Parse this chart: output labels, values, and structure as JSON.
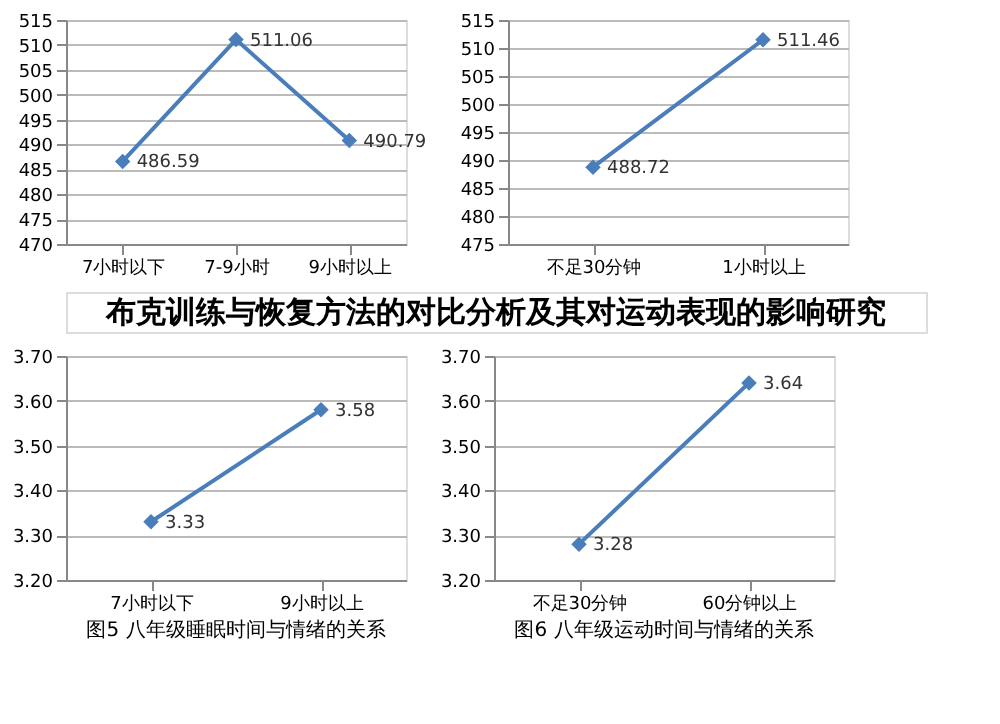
{
  "chart_data": [
    {
      "type": "line",
      "categories": [
        "7小时以下",
        "7-9小时",
        "9小时以上"
      ],
      "values": [
        486.59,
        511.06,
        490.79
      ],
      "color": "#4a7ebb",
      "ylim": [
        470,
        515
      ],
      "yticks": [
        470,
        475,
        480,
        485,
        490,
        495,
        500,
        505,
        510,
        515
      ],
      "grid": "y",
      "marker": "diamond",
      "data_labels": true
    },
    {
      "type": "line",
      "categories": [
        "不足30分钟",
        "1小时以上"
      ],
      "values": [
        488.72,
        511.46
      ],
      "color": "#4a7ebb",
      "ylim": [
        475,
        515
      ],
      "yticks": [
        475,
        480,
        485,
        490,
        495,
        500,
        505,
        510,
        515
      ],
      "grid": "y",
      "marker": "diamond",
      "data_labels": true
    },
    {
      "type": "other",
      "title": "布克训练与恢复方法的对比分析及其对运动表现的影响研究"
    },
    {
      "type": "line",
      "categories": [
        "7小时以下",
        "9小时以上"
      ],
      "values": [
        3.33,
        3.58
      ],
      "color": "#4a7ebb",
      "ylim": [
        3.2,
        3.7
      ],
      "yticks": [
        {
          "value": 3.2,
          "label": "3.20"
        },
        {
          "value": 3.3,
          "label": "3.30"
        },
        {
          "value": 3.4,
          "label": "3.40"
        },
        {
          "value": 3.5,
          "label": "3.50"
        },
        {
          "value": 3.6,
          "label": "3.60"
        },
        {
          "value": 3.7,
          "label": "3.70"
        }
      ],
      "grid": "y",
      "marker": "diamond",
      "data_labels": true,
      "annotations": [
        "图5  八年级睡眠时间与情绪的关系"
      ]
    },
    {
      "type": "line",
      "categories": [
        "不足30分钟",
        "60分钟以上"
      ],
      "values": [
        3.28,
        3.64
      ],
      "color": "#4a7ebb",
      "ylim": [
        3.2,
        3.7
      ],
      "yticks": [
        {
          "value": 3.2,
          "label": "3.20"
        },
        {
          "value": 3.3,
          "label": "3.30"
        },
        {
          "value": 3.4,
          "label": "3.40"
        },
        {
          "value": 3.5,
          "label": "3.50"
        },
        {
          "value": 3.6,
          "label": "3.60"
        },
        {
          "value": 3.7,
          "label": "3.70"
        }
      ],
      "grid": "y",
      "marker": "diamond",
      "data_labels": true,
      "annotations": [
        "图6  八年级运动时间与情绪的关系"
      ]
    }
  ]
}
